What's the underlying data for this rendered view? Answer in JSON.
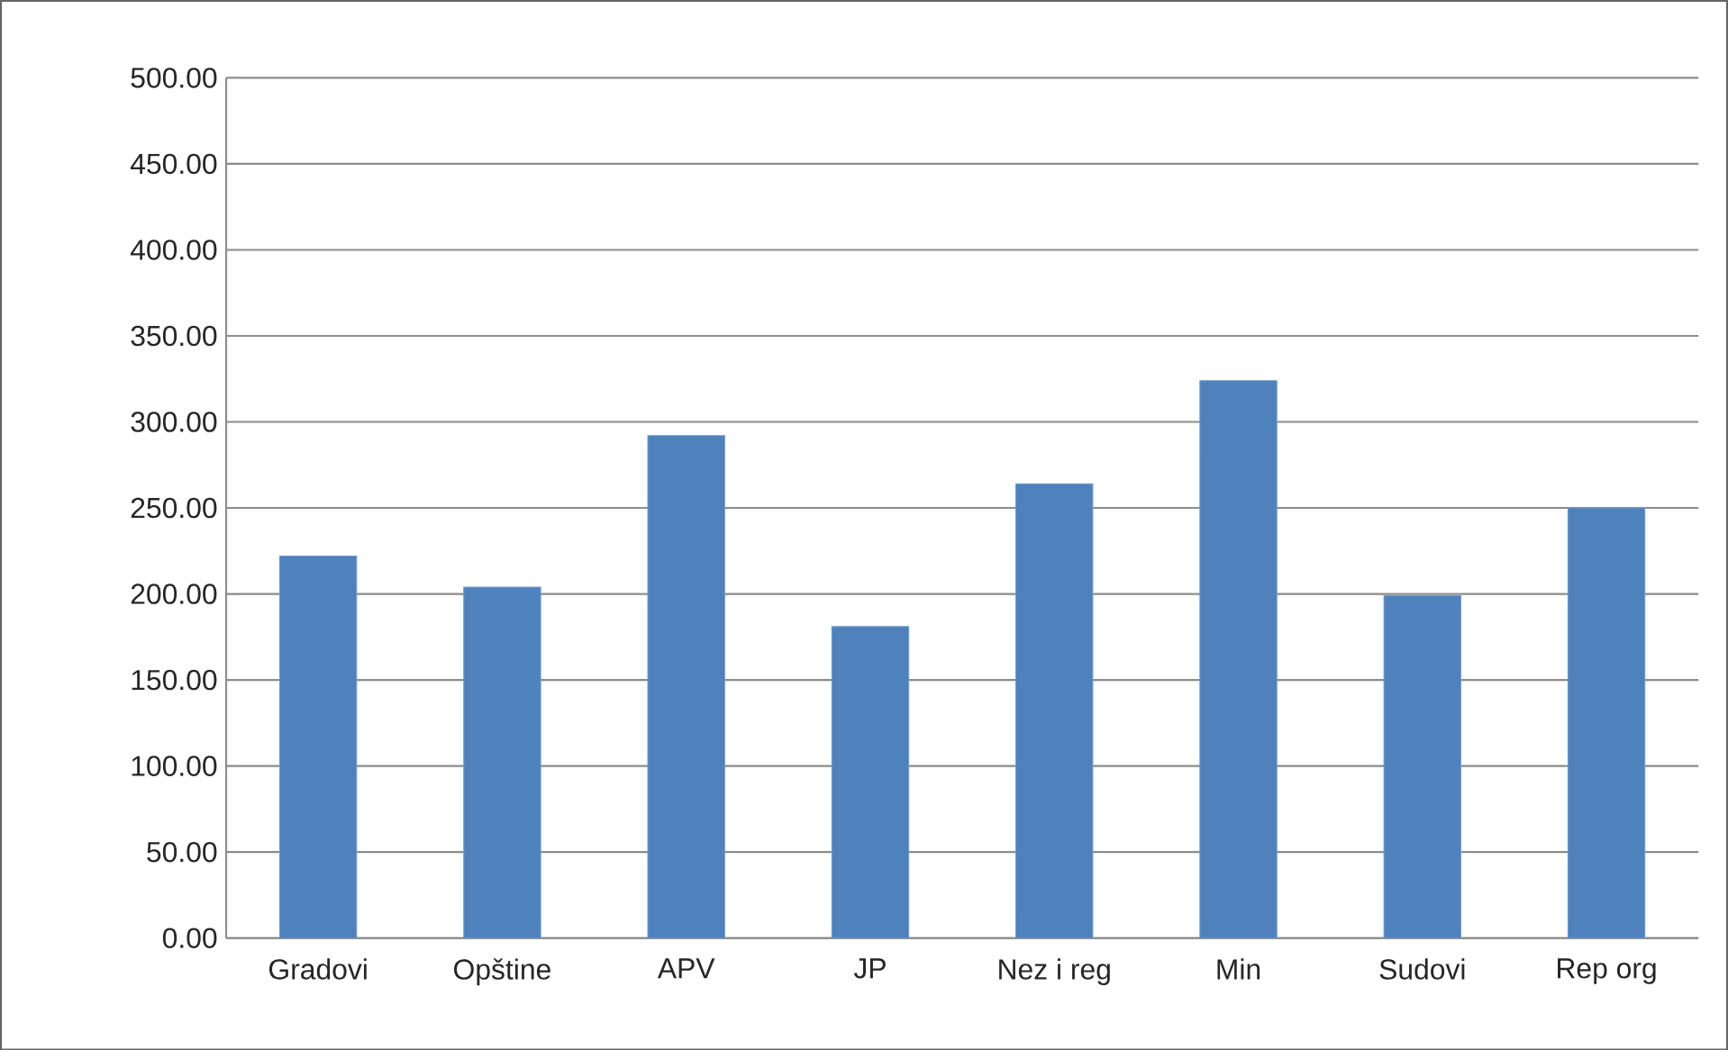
{
  "chart_data": {
    "type": "bar",
    "categories": [
      "Gradovi",
      "Opštine",
      "APV",
      "JP",
      "Nez i reg",
      "Min",
      "Sudovi",
      "Rep org"
    ],
    "values": [
      222,
      204,
      292,
      181,
      264,
      324,
      199,
      250
    ],
    "color": "#4f81bd",
    "ylim": [
      0,
      500
    ],
    "yticks": [
      {
        "value": 0,
        "label": "0.00"
      },
      {
        "value": 50,
        "label": "50.00"
      },
      {
        "value": 100,
        "label": "100.00"
      },
      {
        "value": 150,
        "label": "150.00"
      },
      {
        "value": 200,
        "label": "200.00"
      },
      {
        "value": 250,
        "label": "250.00"
      },
      {
        "value": 300,
        "label": "300.00"
      },
      {
        "value": 350,
        "label": "350.00"
      },
      {
        "value": 400,
        "label": "400.00"
      },
      {
        "value": 450,
        "label": "450.00"
      },
      {
        "value": 500,
        "label": "500.00"
      }
    ],
    "grid": "y"
  }
}
